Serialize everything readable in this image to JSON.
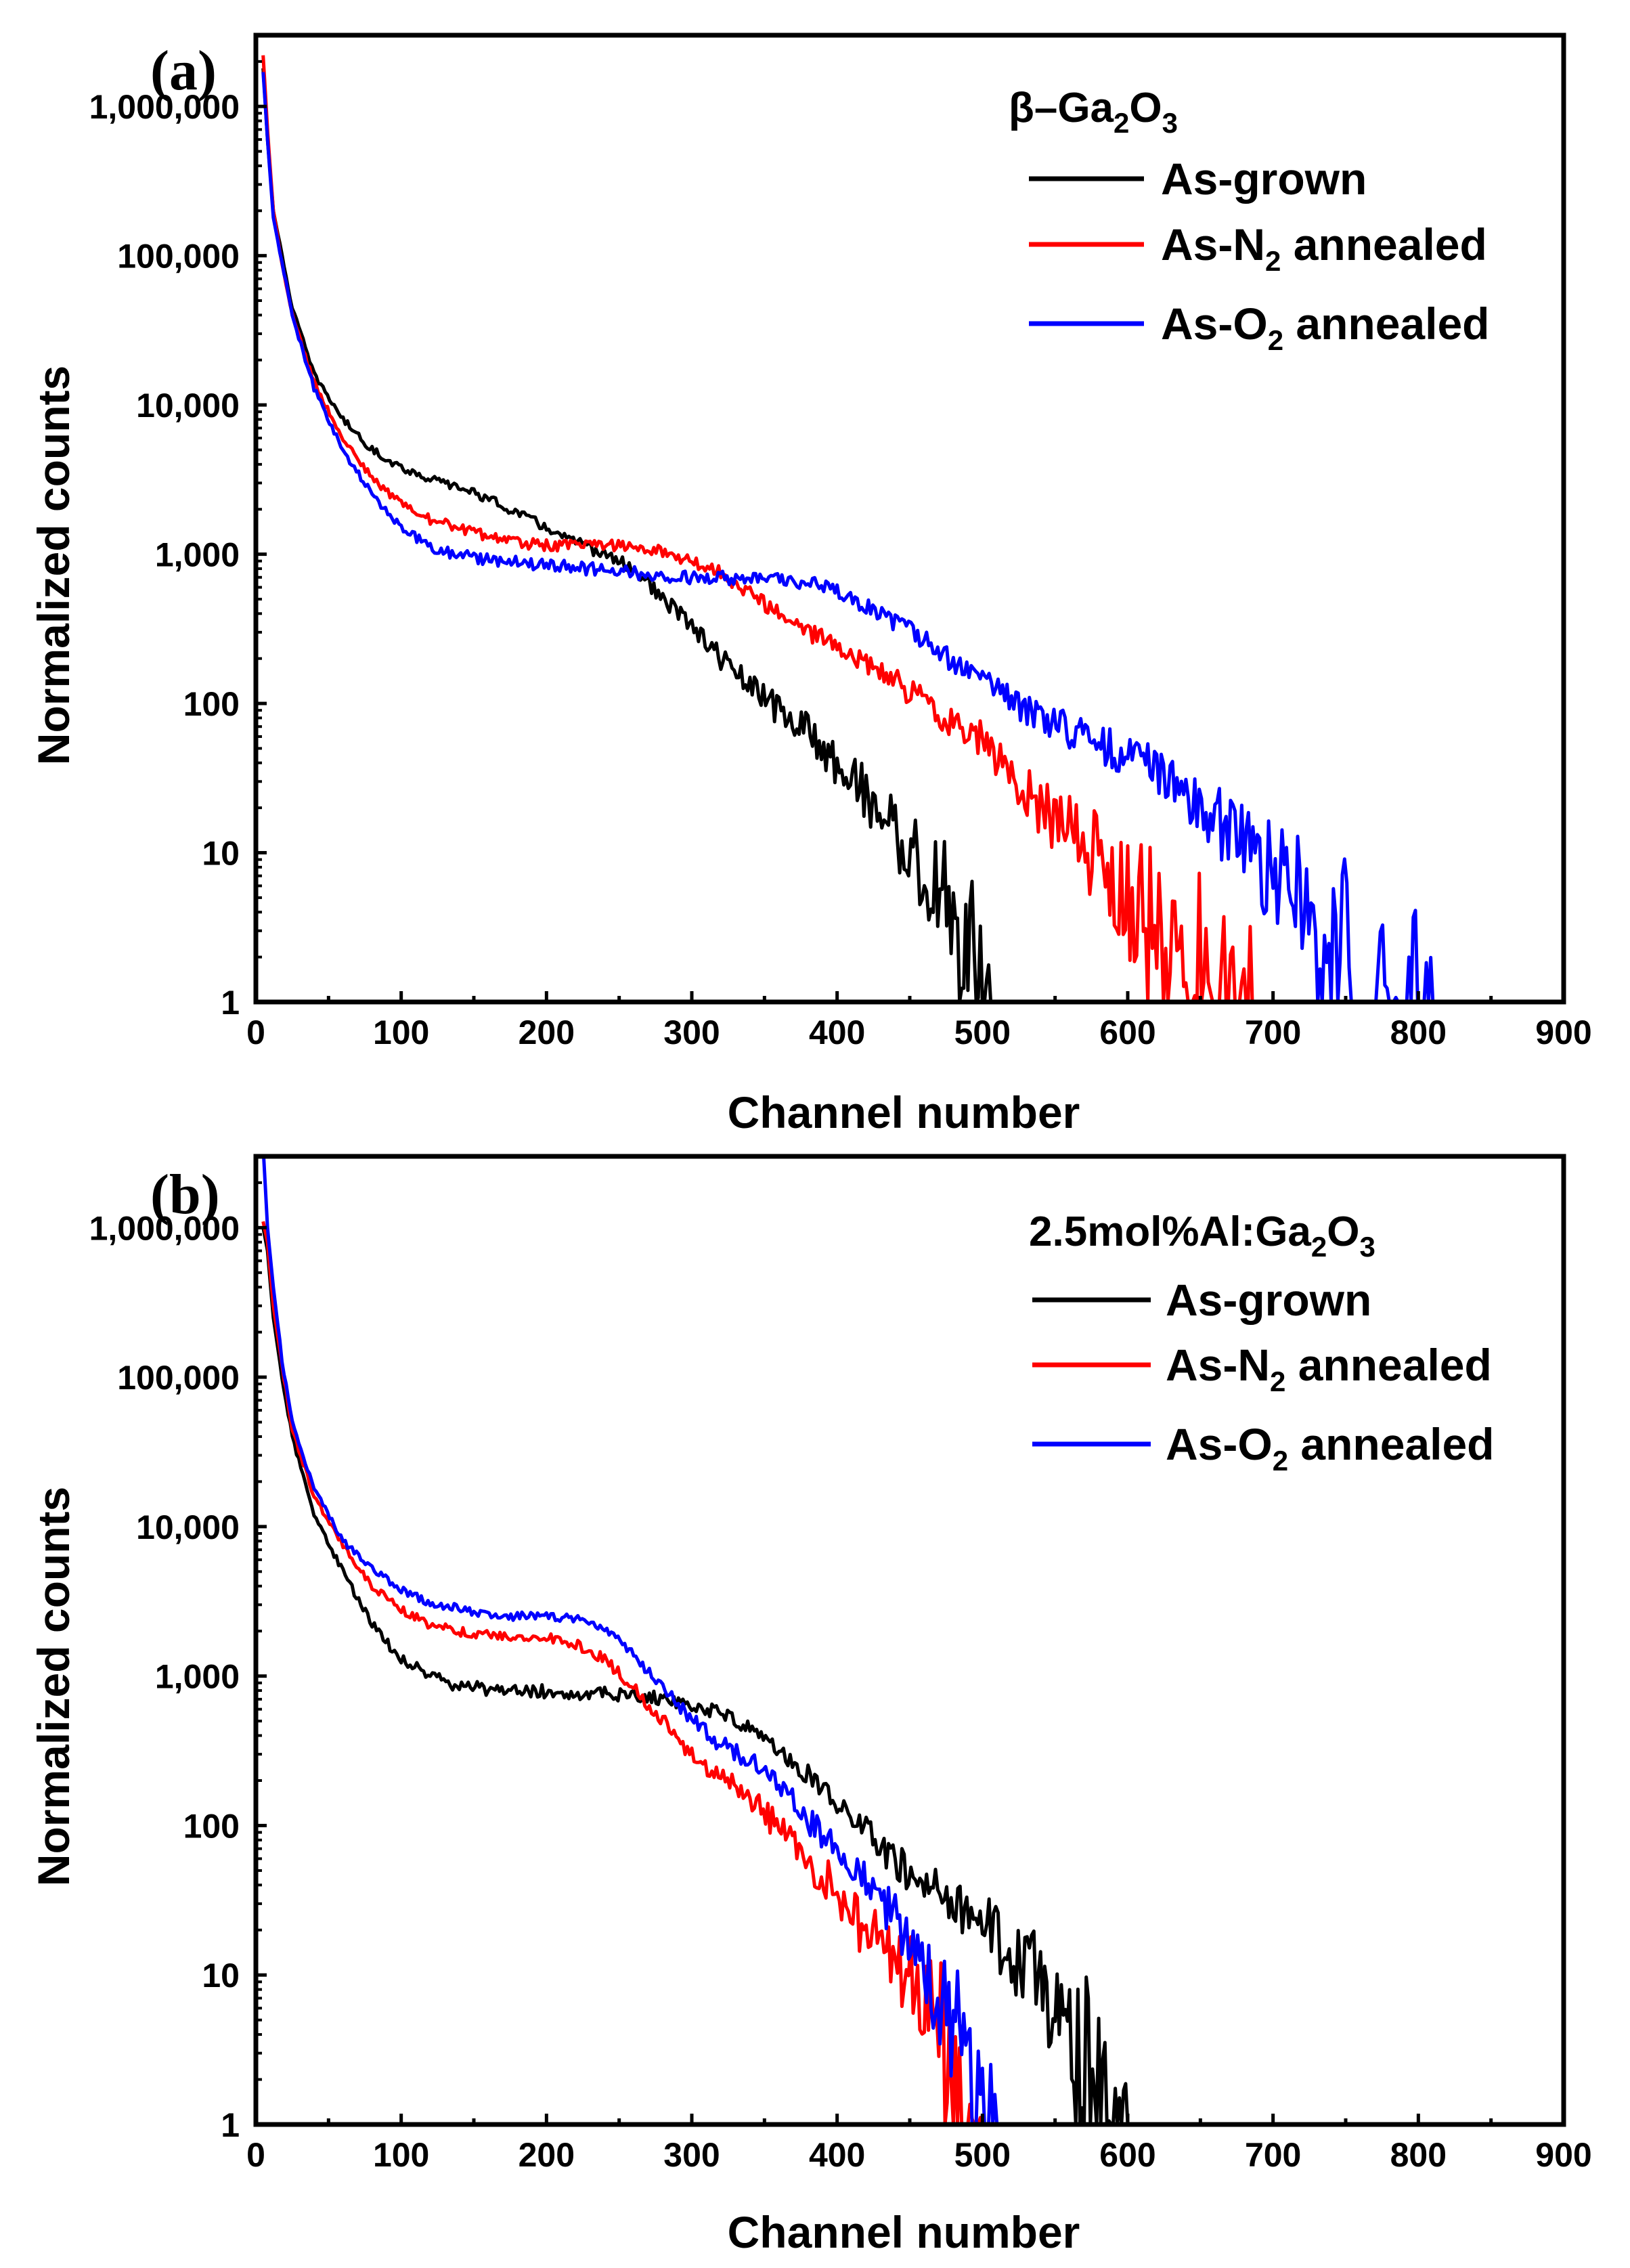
{
  "chart_data": [
    {
      "panel_label": "(a)",
      "type": "line",
      "y_scale": "log",
      "xlabel": "Channel number",
      "ylabel": "Normalized counts",
      "xlim": [
        0,
        900
      ],
      "ylim": [
        1,
        3000000
      ],
      "x_ticks": [
        "0",
        "100",
        "200",
        "300",
        "400",
        "500",
        "600",
        "700",
        "800",
        "900"
      ],
      "y_ticks": [
        "1",
        "10",
        "100",
        "1,000",
        "10,000",
        "100,000",
        "1,000,000"
      ],
      "legend": {
        "title": "β–Ga2O3",
        "title_main": "β–Ga",
        "title_sub1": "2",
        "title_mid": "O",
        "title_sub2": "3",
        "position": "top-right"
      },
      "series": [
        {
          "name": "As-grown",
          "label_pre": "As-grown",
          "label_sub": "",
          "label_post": "",
          "color": "#000000",
          "points": [
            [
              5,
              1800000
            ],
            [
              8,
              600000
            ],
            [
              12,
              200000
            ],
            [
              18,
              100000
            ],
            [
              25,
              45000
            ],
            [
              40,
              16000
            ],
            [
              60,
              8000
            ],
            [
              80,
              5000
            ],
            [
              100,
              3800
            ],
            [
              120,
              3200
            ],
            [
              150,
              2600
            ],
            [
              180,
              1900
            ],
            [
              200,
              1500
            ],
            [
              220,
              1200
            ],
            [
              240,
              1000
            ],
            [
              260,
              800
            ],
            [
              280,
              500
            ],
            [
              300,
              330
            ],
            [
              320,
              200
            ],
            [
              340,
              130
            ],
            [
              360,
              90
            ],
            [
              380,
              65
            ],
            [
              400,
              40
            ],
            [
              420,
              25
            ],
            [
              440,
              14
            ],
            [
              460,
              7
            ],
            [
              480,
              4
            ],
            [
              490,
              2
            ],
            [
              500,
              1.5
            ],
            [
              510,
              1
            ]
          ]
        },
        {
          "name": "As-N2 annealed",
          "label_pre": "As-N",
          "label_sub": "2",
          "label_post": " annealed",
          "color": "#ff0000",
          "points": [
            [
              5,
              2200000
            ],
            [
              8,
              700000
            ],
            [
              12,
              200000
            ],
            [
              18,
              90000
            ],
            [
              25,
              40000
            ],
            [
              40,
              14000
            ],
            [
              60,
              6000
            ],
            [
              80,
              3200
            ],
            [
              100,
              2200
            ],
            [
              120,
              1700
            ],
            [
              150,
              1400
            ],
            [
              180,
              1200
            ],
            [
              200,
              1150
            ],
            [
              230,
              1150
            ],
            [
              260,
              1150
            ],
            [
              280,
              1050
            ],
            [
              300,
              900
            ],
            [
              320,
              750
            ],
            [
              340,
              550
            ],
            [
              360,
              400
            ],
            [
              380,
              300
            ],
            [
              400,
              240
            ],
            [
              420,
              190
            ],
            [
              440,
              140
            ],
            [
              460,
              100
            ],
            [
              480,
              75
            ],
            [
              500,
              55
            ],
            [
              520,
              35
            ],
            [
              540,
              20
            ],
            [
              560,
              14
            ],
            [
              580,
              9
            ],
            [
              600,
              5
            ],
            [
              620,
              3.5
            ],
            [
              640,
              2.5
            ],
            [
              660,
              2
            ],
            [
              680,
              1.5
            ],
            [
              690,
              1
            ]
          ]
        },
        {
          "name": "As-O2 annealed",
          "label_pre": "As-O",
          "label_sub": "2",
          "label_post": " annealed",
          "color": "#0000ff",
          "points": [
            [
              5,
              1700000
            ],
            [
              8,
              600000
            ],
            [
              12,
              180000
            ],
            [
              18,
              90000
            ],
            [
              25,
              40000
            ],
            [
              40,
              13000
            ],
            [
              60,
              5000
            ],
            [
              80,
              2500
            ],
            [
              100,
              1500
            ],
            [
              120,
              1100
            ],
            [
              150,
              950
            ],
            [
              200,
              850
            ],
            [
              250,
              760
            ],
            [
              300,
              700
            ],
            [
              350,
              680
            ],
            [
              380,
              650
            ],
            [
              400,
              560
            ],
            [
              420,
              450
            ],
            [
              440,
              350
            ],
            [
              460,
              270
            ],
            [
              480,
              190
            ],
            [
              500,
              140
            ],
            [
              520,
              105
            ],
            [
              540,
              80
            ],
            [
              560,
              65
            ],
            [
              580,
              55
            ],
            [
              600,
              45
            ],
            [
              620,
              35
            ],
            [
              640,
              25
            ],
            [
              660,
              17
            ],
            [
              680,
              11
            ],
            [
              700,
              7
            ],
            [
              720,
              5
            ],
            [
              740,
              3
            ],
            [
              760,
              2
            ],
            [
              780,
              1.5
            ],
            [
              810,
              1
            ]
          ]
        }
      ]
    },
    {
      "panel_label": "(b)",
      "type": "line",
      "y_scale": "log",
      "xlabel": "Channel number",
      "ylabel": "Normalized counts",
      "xlim": [
        0,
        900
      ],
      "ylim": [
        1,
        3000000
      ],
      "x_ticks": [
        "0",
        "100",
        "200",
        "300",
        "400",
        "500",
        "600",
        "700",
        "800",
        "900"
      ],
      "y_ticks": [
        "1",
        "10",
        "100",
        "1,000",
        "10,000",
        "100,000",
        "1,000,000"
      ],
      "legend": {
        "title": "2.5mol%Al:Ga2O3",
        "title_main": "2.5mol%Al:Ga",
        "title_sub1": "2",
        "title_mid": "O",
        "title_sub2": "3",
        "position": "top-right"
      },
      "series": [
        {
          "name": "As-grown",
          "label_pre": "As-grown",
          "label_sub": "",
          "label_post": "",
          "color": "#000000",
          "points": [
            [
              5,
              1000000
            ],
            [
              8,
              700000
            ],
            [
              12,
              250000
            ],
            [
              18,
              100000
            ],
            [
              25,
              40000
            ],
            [
              40,
              12000
            ],
            [
              60,
              5000
            ],
            [
              80,
              2200
            ],
            [
              100,
              1300
            ],
            [
              120,
              1000
            ],
            [
              140,
              850
            ],
            [
              160,
              820
            ],
            [
              180,
              800
            ],
            [
              200,
              790
            ],
            [
              220,
              770
            ],
            [
              240,
              760
            ],
            [
              260,
              750
            ],
            [
              280,
              700
            ],
            [
              300,
              650
            ],
            [
              320,
              560
            ],
            [
              340,
              450
            ],
            [
              360,
              330
            ],
            [
              380,
              220
            ],
            [
              400,
              140
            ],
            [
              420,
              90
            ],
            [
              440,
              60
            ],
            [
              460,
              40
            ],
            [
              480,
              30
            ],
            [
              500,
              22
            ],
            [
              520,
              14
            ],
            [
              540,
              9
            ],
            [
              550,
              6
            ],
            [
              560,
              4
            ],
            [
              570,
              3
            ],
            [
              580,
              2.5
            ],
            [
              590,
              1.5
            ],
            [
              600,
              1
            ]
          ]
        },
        {
          "name": "As-N2 annealed",
          "label_pre": "As-N",
          "label_sub": "2",
          "label_post": " annealed",
          "color": "#ff0000",
          "points": [
            [
              5,
              1100000
            ],
            [
              8,
              800000
            ],
            [
              12,
              300000
            ],
            [
              18,
              120000
            ],
            [
              25,
              45000
            ],
            [
              40,
              16000
            ],
            [
              60,
              7500
            ],
            [
              80,
              4000
            ],
            [
              100,
              2800
            ],
            [
              120,
              2200
            ],
            [
              150,
              1900
            ],
            [
              180,
              1800
            ],
            [
              200,
              1800
            ],
            [
              220,
              1650
            ],
            [
              240,
              1300
            ],
            [
              260,
              850
            ],
            [
              280,
              500
            ],
            [
              300,
              300
            ],
            [
              320,
              210
            ],
            [
              340,
              150
            ],
            [
              360,
              95
            ],
            [
              380,
              60
            ],
            [
              400,
              35
            ],
            [
              420,
              20
            ],
            [
              440,
              13
            ],
            [
              460,
              8
            ],
            [
              470,
              5
            ],
            [
              480,
              2.5
            ],
            [
              490,
              1.5
            ],
            [
              500,
              1
            ]
          ]
        },
        {
          "name": "As-O2 annealed",
          "label_pre": "As-O",
          "label_sub": "2",
          "label_post": " annealed",
          "color": "#0000ff",
          "points": [
            [
              5,
              3500000
            ],
            [
              8,
              1000000
            ],
            [
              12,
              400000
            ],
            [
              18,
              130000
            ],
            [
              25,
              50000
            ],
            [
              40,
              18000
            ],
            [
              60,
              8000
            ],
            [
              80,
              5200
            ],
            [
              100,
              3800
            ],
            [
              120,
              3100
            ],
            [
              150,
              2700
            ],
            [
              180,
              2500
            ],
            [
              200,
              2500
            ],
            [
              220,
              2450
            ],
            [
              240,
              2100
            ],
            [
              260,
              1400
            ],
            [
              280,
              850
            ],
            [
              300,
              520
            ],
            [
              320,
              350
            ],
            [
              340,
              270
            ],
            [
              360,
              190
            ],
            [
              380,
              110
            ],
            [
              400,
              65
            ],
            [
              420,
              40
            ],
            [
              440,
              22
            ],
            [
              460,
              11
            ],
            [
              480,
              5
            ],
            [
              490,
              2.5
            ],
            [
              500,
              1.5
            ],
            [
              510,
              1
            ]
          ]
        }
      ]
    }
  ]
}
